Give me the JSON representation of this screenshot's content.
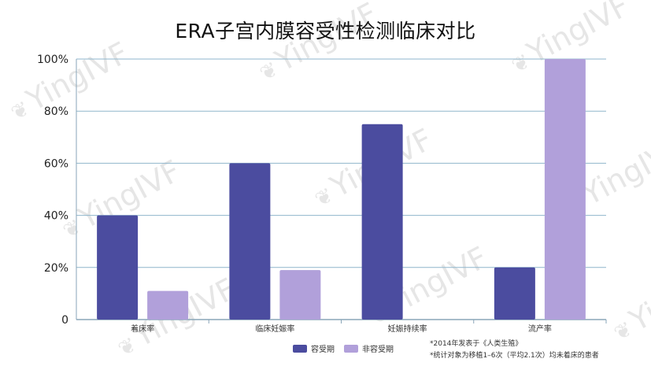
{
  "watermark": "YingIVF",
  "chart_data": {
    "type": "bar",
    "title": "ERA子宫内膜容受性检测临床对比",
    "categories": [
      "着床率",
      "临床妊娠率",
      "妊娠持续率",
      "流产率"
    ],
    "series": [
      {
        "name": "容受期",
        "values": [
          40,
          60,
          75,
          20
        ]
      },
      {
        "name": "非容受期",
        "values": [
          11,
          19,
          0,
          100
        ]
      }
    ],
    "ylim": [
      0,
      100
    ],
    "yticks": [
      "0",
      "20%",
      "40%",
      "60%",
      "80%",
      "100%"
    ],
    "grid": true,
    "legend_position": "bottom",
    "colors": {
      "receptive": "#4b4c9f",
      "non_receptive": "#b1a0da",
      "grid": "#8fb6cc",
      "axis": "#8aa6b8"
    },
    "notes": [
      "*2014年发表于《人类生殖》",
      "*统计对象为移植1–6次（平均2.1次）均未着床的患者"
    ]
  }
}
